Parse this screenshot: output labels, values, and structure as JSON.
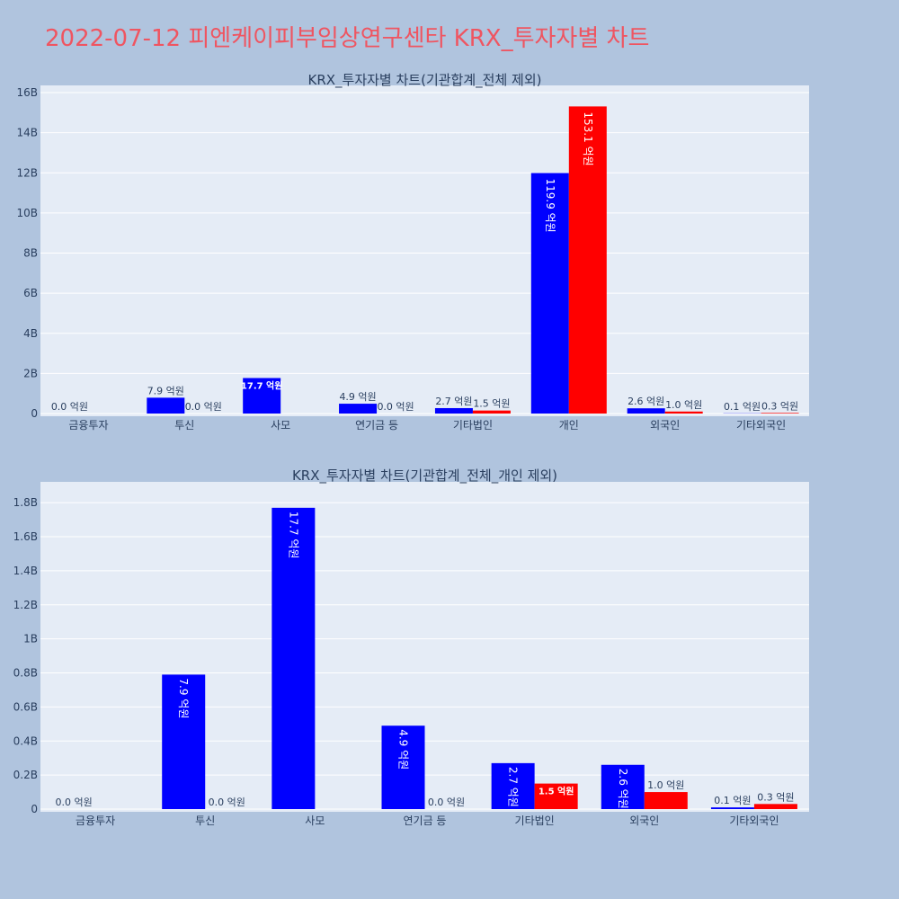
{
  "title": "2022-07-12 피엔케이피부임상연구센타 KRX_투자자별 차트",
  "colors": {
    "buy": "#0000ff",
    "sell": "#ff0000",
    "plot_bg": "#e5ecf6",
    "page_bg": "#b0c4de",
    "title": "#ef5561"
  },
  "chart_data": [
    {
      "type": "bar",
      "title": "KRX_투자자별 차트(기관합계_전체 제외)",
      "categories": [
        "금융투자",
        "투신",
        "사모",
        "연기금 등",
        "기타법인",
        "개인",
        "외국인",
        "기타외국인"
      ],
      "series": [
        {
          "values": [
            0,
            790000000,
            1770000000,
            490000000,
            270000000,
            11990000000,
            260000000,
            10000000
          ],
          "labels": [
            "0.0 억원",
            "7.9 억원",
            "17.7 억원",
            "4.9 억원",
            "2.7 억원",
            "119.9 억원",
            "2.6 억원",
            "0.1 억원"
          ]
        },
        {
          "values": [
            0,
            0,
            null,
            0,
            150000000,
            15310000000,
            100000000,
            30000000
          ],
          "labels": [
            "",
            "0.0 억원",
            "",
            "0.0 억원",
            "1.5 억원",
            "153.1 억원",
            "1.0 억원",
            "0.3 억원"
          ]
        }
      ],
      "ylim": [
        0,
        16000000000
      ],
      "yticks": [
        0,
        2000000000,
        4000000000,
        6000000000,
        8000000000,
        10000000000,
        12000000000,
        14000000000,
        16000000000
      ],
      "ytick_labels": [
        "0",
        "2B",
        "4B",
        "6B",
        "8B",
        "10B",
        "12B",
        "14B",
        "16B"
      ],
      "grid": true
    },
    {
      "type": "bar",
      "title": "KRX_투자자별 차트(기관합계_전체_개인 제외)",
      "categories": [
        "금융투자",
        "투신",
        "사모",
        "연기금 등",
        "기타법인",
        "외국인",
        "기타외국인"
      ],
      "series": [
        {
          "values": [
            0,
            790000000,
            1770000000,
            490000000,
            270000000,
            260000000,
            10000000
          ],
          "labels": [
            "0.0 억원",
            "7.9 억원",
            "17.7 억원",
            "4.9 억원",
            "2.7 억원",
            "2.6 억원",
            "0.1 억원"
          ]
        },
        {
          "values": [
            0,
            0,
            null,
            0,
            150000000,
            100000000,
            30000000
          ],
          "labels": [
            "",
            "0.0 억원",
            "",
            "0.0 억원",
            "1.5 억원",
            "1.0 억원",
            "0.3 억원"
          ]
        }
      ],
      "ylim": [
        0,
        1880000000
      ],
      "yticks": [
        0,
        200000000,
        400000000,
        600000000,
        800000000,
        1000000000,
        1200000000,
        1400000000,
        1600000000,
        1800000000
      ],
      "ytick_labels": [
        "0",
        "0.2B",
        "0.4B",
        "0.6B",
        "0.8B",
        "1B",
        "1.2B",
        "1.4B",
        "1.6B",
        "1.8B"
      ],
      "grid": true
    }
  ]
}
